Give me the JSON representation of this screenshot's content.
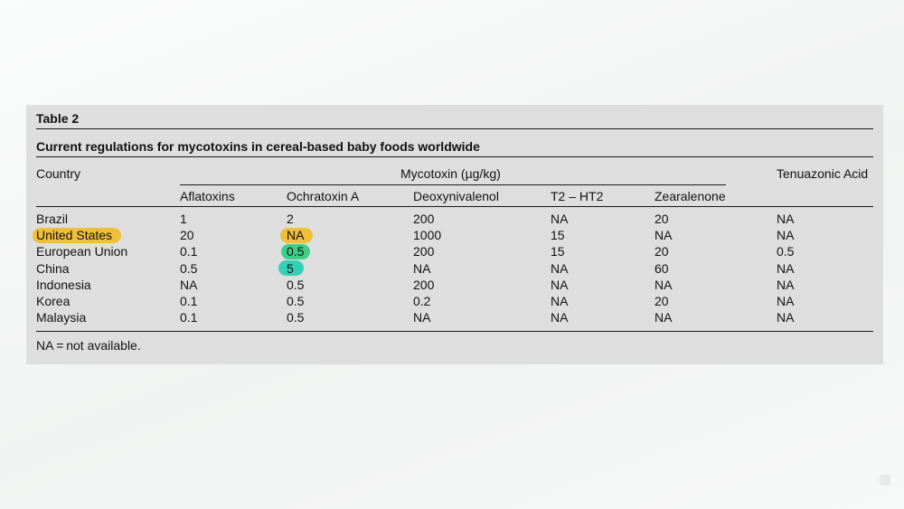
{
  "table": {
    "label": "Table 2",
    "title": "Current regulations for mycotoxins in cereal-based baby foods worldwide",
    "header": {
      "country": "Country",
      "group": "Mycotoxin (µg/kg)",
      "last": "Tenuazonic Acid",
      "columns": [
        "Aflatoxins",
        "Ochratoxin A",
        "Deoxynivalenol",
        "T2 – HT2",
        "Zearalenone"
      ]
    },
    "rows": [
      [
        "Brazil",
        "1",
        "2",
        "200",
        "NA",
        "20",
        "NA"
      ],
      [
        "United States",
        "20",
        "NA",
        "1000",
        "15",
        "NA",
        "NA"
      ],
      [
        "European Union",
        "0.1",
        "0.5",
        "200",
        "15",
        "20",
        "0.5"
      ],
      [
        "China",
        "0.5",
        "5",
        "NA",
        "NA",
        "60",
        "NA"
      ],
      [
        "Indonesia",
        "NA",
        "0.5",
        "200",
        "NA",
        "NA",
        "NA"
      ],
      [
        "Korea",
        "0.1",
        "0.5",
        "0.2",
        "NA",
        "20",
        "NA"
      ],
      [
        "Malaysia",
        "0.1",
        "0.5",
        "NA",
        "NA",
        "NA",
        "NA"
      ]
    ],
    "footnote": "NA = not available.",
    "highlight_colors": {
      "yellow": "#efbf3a",
      "green": "#3ccf86",
      "teal": "#33d0b6"
    }
  }
}
